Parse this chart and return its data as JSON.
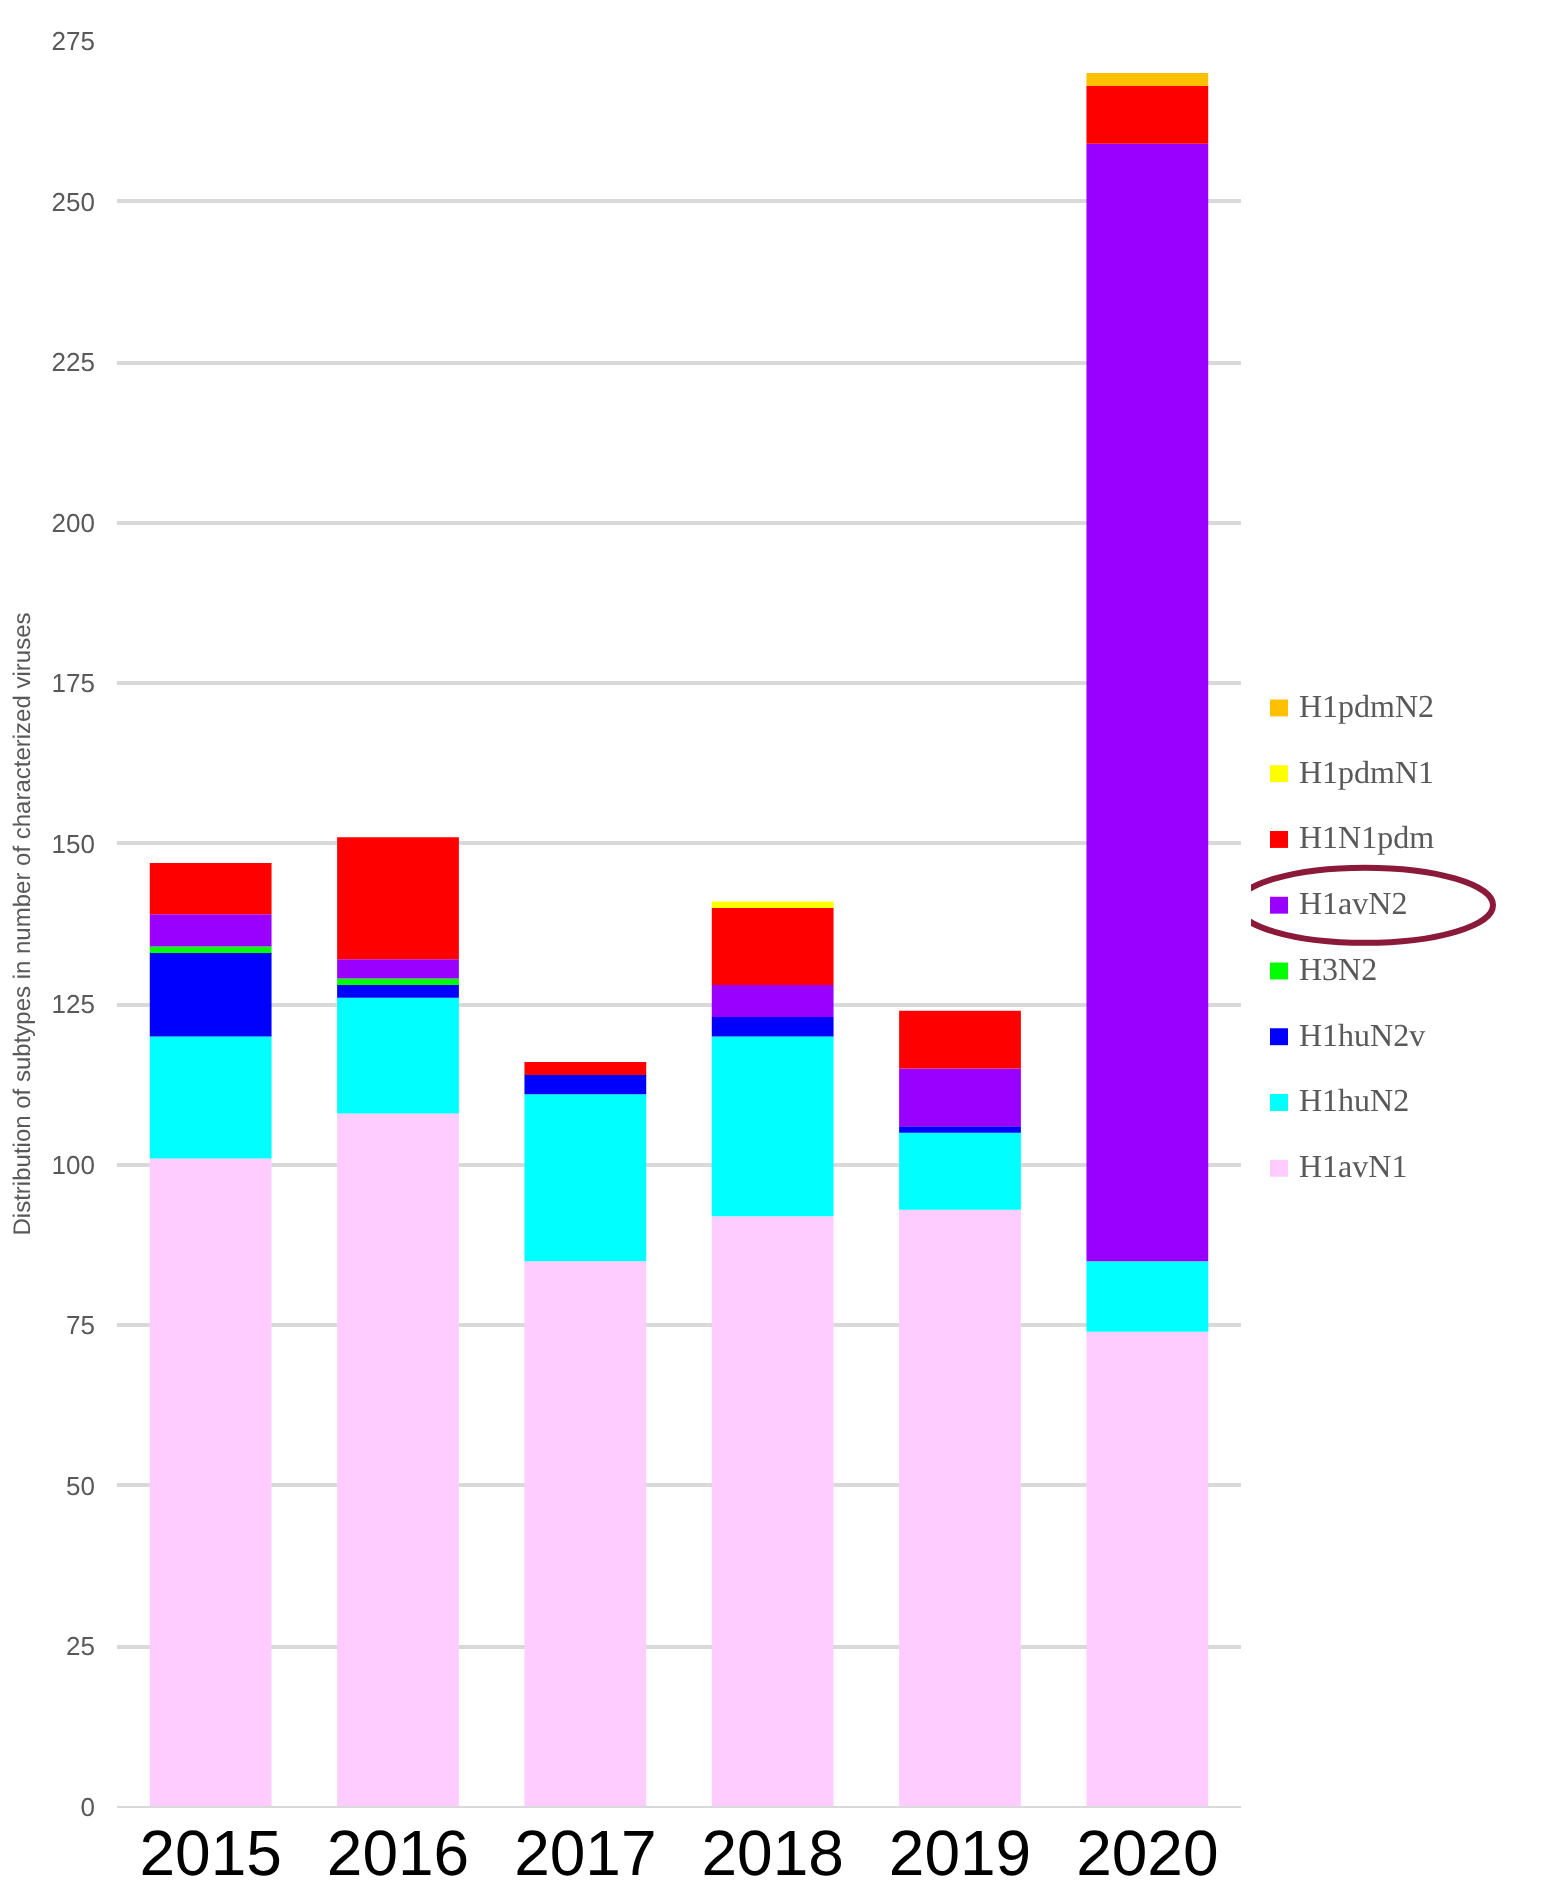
{
  "chart_data": {
    "type": "bar",
    "stacked": true,
    "ylabel": "Distribution of subtypes in number of characterized viruses",
    "categories": [
      "2015",
      "2016",
      "2017",
      "2018",
      "2019",
      "2020"
    ],
    "ylim": [
      0,
      275
    ],
    "yticks": [
      0,
      25,
      50,
      75,
      100,
      125,
      150,
      175,
      200,
      225,
      250,
      275
    ],
    "grid": "y",
    "legend": "right",
    "series": [
      {
        "name": "H1avN1",
        "color": "#ffccff",
        "values": [
          101,
          108,
          85,
          92,
          93,
          74
        ]
      },
      {
        "name": "H1huN2",
        "color": "#00ffff",
        "values": [
          19,
          18,
          26,
          28,
          12,
          11
        ]
      },
      {
        "name": "H1huN2v",
        "color": "#0000ff",
        "values": [
          13,
          2,
          3,
          3,
          1,
          0
        ]
      },
      {
        "name": "H3N2",
        "color": "#00ff00",
        "values": [
          1,
          1,
          0,
          0,
          0,
          0
        ]
      },
      {
        "name": "H1avN2",
        "color": "#9900ff",
        "values": [
          5,
          3,
          0,
          5,
          9,
          174
        ]
      },
      {
        "name": "H1N1pdm",
        "color": "#ff0000",
        "values": [
          8,
          19,
          2,
          12,
          9,
          9
        ]
      },
      {
        "name": "H1pdmN1",
        "color": "#ffff00",
        "values": [
          0,
          0,
          0,
          1,
          0,
          0
        ]
      },
      {
        "name": "H1pdmN2",
        "color": "#ffc000",
        "values": [
          0,
          0,
          0,
          0,
          0,
          2
        ]
      }
    ]
  }
}
